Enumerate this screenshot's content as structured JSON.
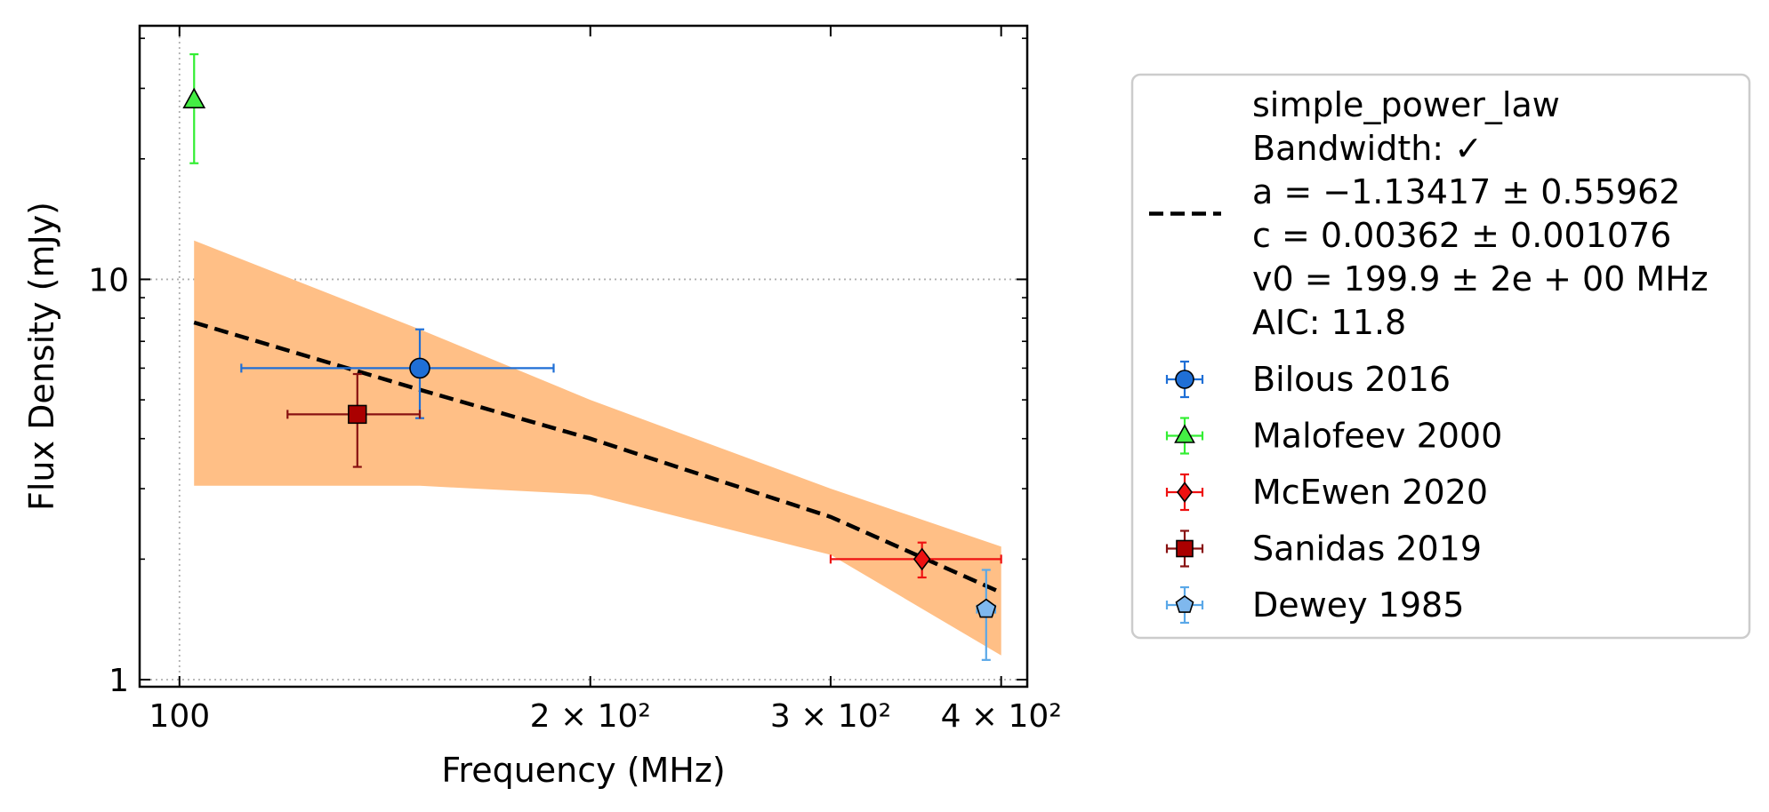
{
  "chart_data": {
    "type": "scatter",
    "xlabel": "Frequency (MHz)",
    "ylabel": "Flux Density (mJy)",
    "xscale": "log",
    "yscale": "log",
    "xlim": [
      93.5,
      418
    ],
    "ylim": [
      0.96,
      43
    ],
    "grid": true,
    "legend_position": "outside-right",
    "x_ticks": [
      {
        "value": 100,
        "label": "100"
      },
      {
        "value": 200,
        "label": "2 × 10²"
      },
      {
        "value": 300,
        "label": "3 × 10²"
      },
      {
        "value": 400,
        "label": "4 × 10²"
      }
    ],
    "y_ticks": [
      {
        "value": 1,
        "label": "1"
      },
      {
        "value": 10,
        "label": "10"
      }
    ],
    "fit": {
      "color": "#000000",
      "band_color": "#ffbf86",
      "legend_lines": [
        "simple_power_law",
        "Bandwidth: ✓",
        "a = −1.13417 ± 0.55962",
        "c = 0.00362 ± 0.001076",
        "v0 = 199.9 ± 2e + 00 MHz",
        "AIC: 11.8"
      ],
      "line": [
        [
          102.5,
          7.8
        ],
        [
          150,
          5.3
        ],
        [
          200,
          4.0
        ],
        [
          300,
          2.55
        ],
        [
          400,
          1.65
        ]
      ],
      "band_upper": [
        [
          102.5,
          12.5
        ],
        [
          150,
          7.5
        ],
        [
          200,
          5.0
        ],
        [
          300,
          3.0
        ],
        [
          400,
          2.15
        ]
      ],
      "band_lower": [
        [
          102.5,
          3.05
        ],
        [
          150,
          3.05
        ],
        [
          200,
          2.9
        ],
        [
          300,
          2.05
        ],
        [
          400,
          1.15
        ]
      ]
    },
    "series": [
      {
        "name": "Bilous 2016",
        "marker": "circle",
        "color": "#1f6fd6",
        "ecolor": "#1f6fd6",
        "points": [
          {
            "x": 150,
            "y": 6.0,
            "xerr": [
              39,
              38
            ],
            "yerr": [
              1.5,
              1.5
            ]
          }
        ]
      },
      {
        "name": "Malofeev 2000",
        "marker": "triangle",
        "color": "#44ee44",
        "ecolor": "#33ee33",
        "points": [
          {
            "x": 102.5,
            "y": 28.0,
            "xerr": [
              0,
              0
            ],
            "yerr": [
              8.5,
              8.5
            ]
          }
        ]
      },
      {
        "name": "McEwen 2020",
        "marker": "diamond",
        "color": "#ee1111",
        "ecolor": "#ee1111",
        "points": [
          {
            "x": 350,
            "y": 2.0,
            "xerr": [
              50,
              50
            ],
            "yerr": [
              0.2,
              0.2
            ]
          }
        ]
      },
      {
        "name": "Sanidas 2019",
        "marker": "square",
        "color": "#aa0000",
        "ecolor": "#881111",
        "points": [
          {
            "x": 135,
            "y": 4.6,
            "xerr": [
              15,
              15
            ],
            "yerr": [
              1.2,
              1.2
            ]
          }
        ]
      },
      {
        "name": "Dewey 1985",
        "marker": "pentagon",
        "color": "#7fb8ee",
        "ecolor": "#5aa8e8",
        "points": [
          {
            "x": 390,
            "y": 1.5,
            "xerr": [
              6,
              6
            ],
            "yerr": [
              0.38,
              0.38
            ]
          }
        ]
      }
    ]
  }
}
